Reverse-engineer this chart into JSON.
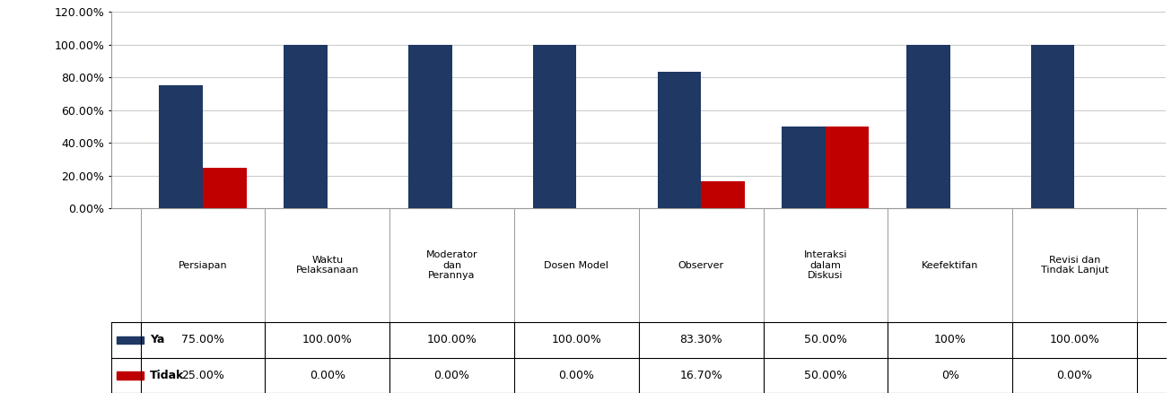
{
  "categories": [
    "Persiapan",
    "Waktu\nPelaksanaan",
    "Moderator\ndan\nPerannya",
    "Dosen Model",
    "Observer",
    "Interaksi\ndalam\nDiskusi",
    "Keefektifan",
    "Revisi dan\nTindak Lanjut"
  ],
  "ya_values": [
    75.0,
    100.0,
    100.0,
    100.0,
    83.3,
    50.0,
    100.0,
    100.0
  ],
  "tidak_values": [
    25.0,
    0.0,
    0.0,
    0.0,
    16.7,
    50.0,
    0.0,
    0.0
  ],
  "ya_labels": [
    "75.00%",
    "100.00%",
    "100.00%",
    "100.00%",
    "83.30%",
    "50.00%",
    "100%",
    "100.00%"
  ],
  "tidak_labels": [
    "25.00%",
    "0.00%",
    "0.00%",
    "0.00%",
    "16.70%",
    "50.00%",
    "0%",
    "0.00%"
  ],
  "ya_color": "#1F3864",
  "tidak_color": "#C00000",
  "ylim": [
    0,
    120
  ],
  "yticks": [
    0,
    20,
    40,
    60,
    80,
    100,
    120
  ],
  "ytick_labels": [
    "0.00%",
    "20.00%",
    "40.00%",
    "60.00%",
    "80.00%",
    "100.00%",
    "120.00%"
  ],
  "bar_width": 0.35,
  "legend_ya": "Ya",
  "legend_tidak": "Tidak",
  "background_color": "#ffffff",
  "grid_color": "#cccccc"
}
